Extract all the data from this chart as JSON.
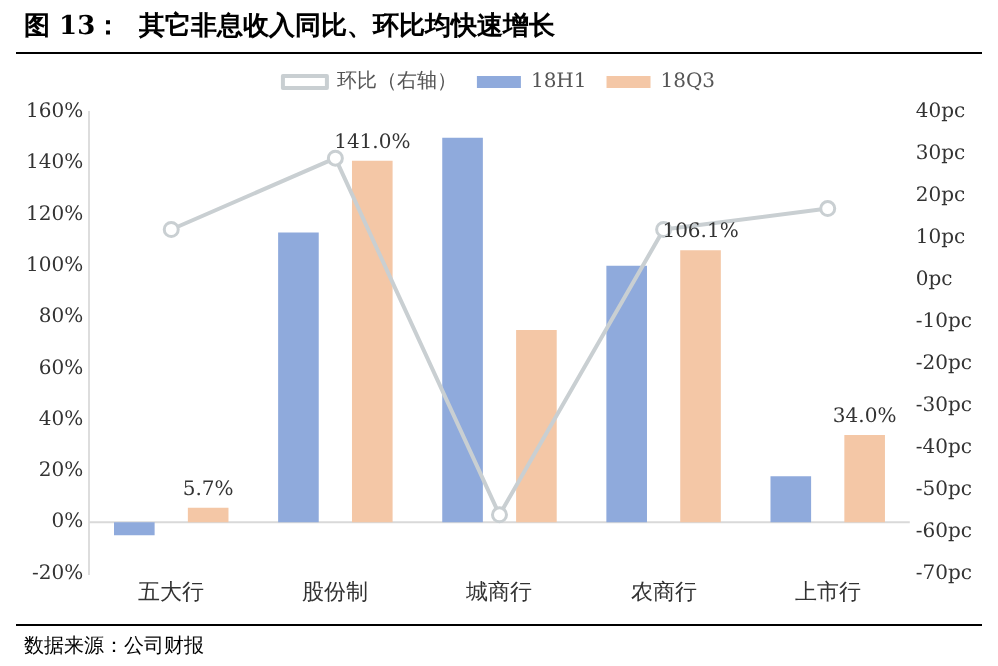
{
  "chart_data": {
    "type": "bar",
    "title": "图 13：  其它非息收入同比、环比均快速增长",
    "categories": [
      "五大行",
      "股份制",
      "城商行",
      "农商行",
      "上市行"
    ],
    "series": [
      {
        "name": "18H1",
        "color": "#8faadc",
        "values": [
          -5,
          113,
          150,
          100,
          18
        ]
      },
      {
        "name": "18Q3",
        "color": "#f4c7a6",
        "values": [
          5.7,
          141.0,
          75,
          106.1,
          34.0
        ],
        "value_labels": [
          "5.7%",
          "141.0%",
          null,
          "106.1%",
          "34.0%"
        ]
      },
      {
        "name": "环比（右轴）",
        "type": "line",
        "axis": "y2",
        "color": "#c9cfd2",
        "values": [
          12,
          29,
          -56,
          12,
          17
        ]
      }
    ],
    "ylim": [
      -20,
      160
    ],
    "yticks": [
      {
        "value": -20,
        "label": "-20%"
      },
      {
        "value": 0,
        "label": "0%"
      },
      {
        "value": 20,
        "label": "20%"
      },
      {
        "value": 40,
        "label": "40%"
      },
      {
        "value": 60,
        "label": "60%"
      },
      {
        "value": 80,
        "label": "80%"
      },
      {
        "value": 100,
        "label": "100%"
      },
      {
        "value": 120,
        "label": "120%"
      },
      {
        "value": 140,
        "label": "140%"
      },
      {
        "value": 160,
        "label": "160%"
      }
    ],
    "y2lim": [
      -70,
      40
    ],
    "y2ticks": [
      {
        "value": -70,
        "label": "-70pc"
      },
      {
        "value": -60,
        "label": "-60pc"
      },
      {
        "value": -50,
        "label": "-50pc"
      },
      {
        "value": -40,
        "label": "-40pc"
      },
      {
        "value": -30,
        "label": "-30pc"
      },
      {
        "value": -20,
        "label": "-20pc"
      },
      {
        "value": -10,
        "label": "-10pc"
      },
      {
        "value": 0,
        "label": "0pc"
      },
      {
        "value": 10,
        "label": "10pc"
      },
      {
        "value": 20,
        "label": "20pc"
      },
      {
        "value": 30,
        "label": "30pc"
      },
      {
        "value": 40,
        "label": "40pc"
      }
    ],
    "marker": "circle",
    "legend": "top",
    "grid": false,
    "annotations": [
      "数据来源：公司财报"
    ]
  }
}
